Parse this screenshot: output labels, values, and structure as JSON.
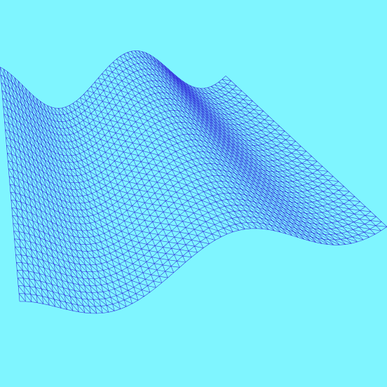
{
  "scene": {
    "background_color": "#7ff5ff",
    "mesh_color": "#2a1ad8",
    "mesh_style": "triangulated-wireframe",
    "surface": "wavy-sine-surface"
  }
}
